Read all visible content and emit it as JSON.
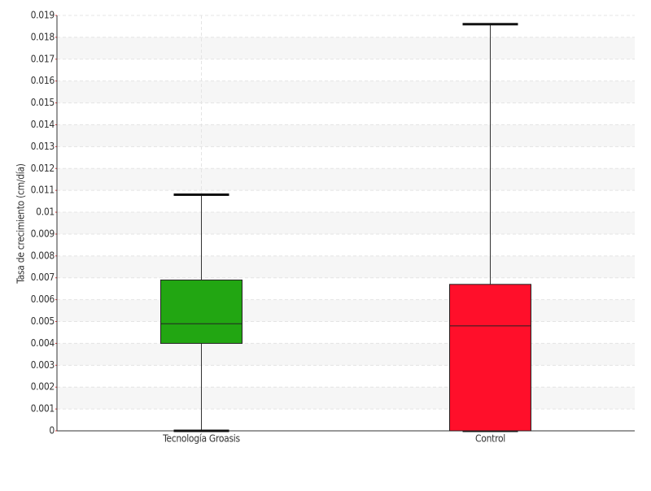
{
  "chart_data": {
    "type": "box",
    "y_label": "Tasa de crecimiento (cm/día)",
    "categories": [
      "Tecnología Groasis",
      "Control"
    ],
    "boxes": [
      {
        "min": 0,
        "q1": 0.004,
        "median": 0.0049,
        "q3": 0.0069,
        "max": 0.0108,
        "color": "#22a612"
      },
      {
        "min": 0,
        "q1": 0,
        "median": 0.0048,
        "q3": 0.0067,
        "max": 0.0186,
        "color": "#ff0f2a"
      }
    ],
    "ylim": [
      0,
      0.019
    ],
    "yticks": [
      0,
      0.001,
      0.002,
      0.003,
      0.004,
      0.005,
      0.006,
      0.007,
      0.008,
      0.009,
      0.01,
      0.011,
      0.012,
      0.013,
      0.014,
      0.015,
      0.016,
      0.017,
      0.018,
      0.019
    ],
    "grid": true
  }
}
